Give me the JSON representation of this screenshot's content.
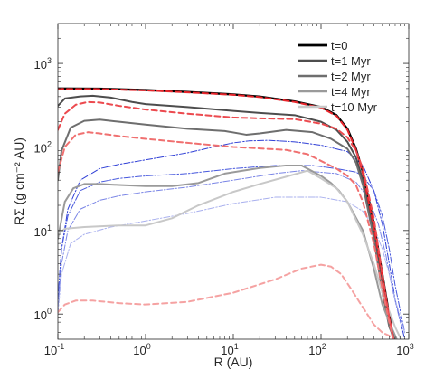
{
  "chart_data": {
    "type": "line",
    "title": "",
    "xlabel": "R (AU)",
    "ylabel": "RΣ (g cm⁻² AU)",
    "x_scale": "log",
    "y_scale": "log",
    "xlim": [
      0.1,
      1000
    ],
    "ylim": [
      0.5,
      3000
    ],
    "grid": false,
    "legend_position": "top-right",
    "x_ticks": [
      {
        "value": 0.1,
        "base": "10",
        "exp": "-1"
      },
      {
        "value": 1,
        "base": "10",
        "exp": "0"
      },
      {
        "value": 10,
        "base": "10",
        "exp": "1"
      },
      {
        "value": 100,
        "base": "10",
        "exp": "2"
      },
      {
        "value": 1000,
        "base": "10",
        "exp": "3"
      }
    ],
    "y_ticks": [
      {
        "value": 1,
        "base": "10",
        "exp": "0"
      },
      {
        "value": 10,
        "base": "10",
        "exp": "1"
      },
      {
        "value": 100,
        "base": "10",
        "exp": "2"
      },
      {
        "value": 1000,
        "base": "10",
        "exp": "3"
      }
    ],
    "series": [
      {
        "name": "t=0",
        "group": "total",
        "color": "#000000",
        "width": 2.4,
        "dash": "",
        "points": [
          [
            0.1,
            500
          ],
          [
            0.3,
            498
          ],
          [
            1,
            480
          ],
          [
            3,
            455
          ],
          [
            10,
            425
          ],
          [
            20,
            400
          ],
          [
            50,
            350
          ],
          [
            100,
            300
          ],
          [
            150,
            240
          ],
          [
            200,
            165
          ],
          [
            250,
            95
          ],
          [
            300,
            50
          ],
          [
            400,
            12
          ],
          [
            500,
            3
          ],
          [
            600,
            0.95
          ],
          [
            700,
            0.4
          ]
        ]
      },
      {
        "name": "t=1 Myr",
        "group": "total",
        "color": "#4d4d4d",
        "width": 2.0,
        "dash": "",
        "points": [
          [
            0.1,
            310
          ],
          [
            0.12,
            380
          ],
          [
            0.18,
            402
          ],
          [
            0.25,
            410
          ],
          [
            0.4,
            390
          ],
          [
            0.7,
            345
          ],
          [
            1,
            325
          ],
          [
            3,
            300
          ],
          [
            10,
            270
          ],
          [
            20,
            255
          ],
          [
            50,
            240
          ],
          [
            100,
            200
          ],
          [
            150,
            160
          ],
          [
            200,
            115
          ],
          [
            250,
            75
          ],
          [
            300,
            40
          ],
          [
            400,
            10
          ],
          [
            500,
            2.5
          ],
          [
            600,
            0.8
          ],
          [
            700,
            0.4
          ]
        ]
      },
      {
        "name": "t=2 Myr",
        "group": "total",
        "color": "#6e6e6e",
        "width": 2.0,
        "dash": "",
        "points": [
          [
            0.1,
            40
          ],
          [
            0.11,
            90
          ],
          [
            0.14,
            170
          ],
          [
            0.2,
            205
          ],
          [
            0.3,
            212
          ],
          [
            0.5,
            200
          ],
          [
            1,
            185
          ],
          [
            3,
            165
          ],
          [
            8,
            155
          ],
          [
            14,
            140
          ],
          [
            20,
            145
          ],
          [
            40,
            160
          ],
          [
            80,
            150
          ],
          [
            130,
            125
          ],
          [
            200,
            95
          ],
          [
            250,
            65
          ],
          [
            300,
            35
          ],
          [
            400,
            8
          ],
          [
            500,
            1.8
          ],
          [
            600,
            0.7
          ],
          [
            750,
            0.4
          ]
        ]
      },
      {
        "name": "t=4 Myr",
        "group": "total",
        "color": "#9a9a9a",
        "width": 2.0,
        "dash": "",
        "points": [
          [
            0.1,
            8
          ],
          [
            0.12,
            22
          ],
          [
            0.15,
            32
          ],
          [
            0.2,
            36
          ],
          [
            0.3,
            36
          ],
          [
            0.5,
            35
          ],
          [
            1,
            34
          ],
          [
            2,
            34
          ],
          [
            4,
            37
          ],
          [
            8,
            48
          ],
          [
            20,
            56
          ],
          [
            40,
            60
          ],
          [
            60,
            60
          ],
          [
            100,
            45
          ],
          [
            130,
            37
          ],
          [
            160,
            30
          ],
          [
            200,
            22
          ],
          [
            300,
            10
          ],
          [
            400,
            3.5
          ],
          [
            500,
            1.3
          ],
          [
            600,
            0.8
          ],
          [
            800,
            0.4
          ]
        ]
      },
      {
        "name": "t=10 Myr",
        "group": "total",
        "color": "#c8c8c8",
        "width": 2.0,
        "dash": "",
        "points": [
          [
            0.1,
            9
          ],
          [
            0.12,
            10.5
          ],
          [
            0.2,
            11
          ],
          [
            0.5,
            11.5
          ],
          [
            1,
            11.5
          ],
          [
            2,
            14
          ],
          [
            4,
            20
          ],
          [
            10,
            29
          ],
          [
            20,
            36
          ],
          [
            40,
            44
          ],
          [
            70,
            52
          ],
          [
            100,
            42
          ],
          [
            150,
            32
          ],
          [
            200,
            22
          ],
          [
            300,
            9
          ],
          [
            400,
            4
          ],
          [
            500,
            1.8
          ],
          [
            700,
            0.7
          ],
          [
            900,
            0.4
          ]
        ]
      },
      {
        "group": "gas-dashed",
        "color": "#e8252b",
        "width": 2.0,
        "dash": "6,4",
        "points": [
          [
            0.1,
            495
          ],
          [
            0.3,
            493
          ],
          [
            1,
            475
          ],
          [
            3,
            450
          ],
          [
            10,
            420
          ],
          [
            20,
            395
          ],
          [
            50,
            345
          ],
          [
            100,
            295
          ],
          [
            150,
            235
          ],
          [
            200,
            160
          ],
          [
            250,
            92
          ],
          [
            300,
            48
          ],
          [
            400,
            11
          ],
          [
            500,
            2.8
          ],
          [
            600,
            0.9
          ],
          [
            700,
            0.4
          ]
        ]
      },
      {
        "group": "gas-dashed",
        "color": "#ec4a4f",
        "width": 2.0,
        "dash": "6,4",
        "points": [
          [
            0.1,
            160
          ],
          [
            0.12,
            250
          ],
          [
            0.16,
            320
          ],
          [
            0.22,
            345
          ],
          [
            0.3,
            340
          ],
          [
            0.5,
            310
          ],
          [
            1,
            280
          ],
          [
            3,
            250
          ],
          [
            10,
            225
          ],
          [
            20,
            220
          ],
          [
            50,
            215
          ],
          [
            100,
            190
          ],
          [
            150,
            165
          ],
          [
            200,
            130
          ],
          [
            250,
            90
          ],
          [
            300,
            55
          ],
          [
            400,
            14
          ],
          [
            500,
            3
          ],
          [
            600,
            0.9
          ],
          [
            700,
            0.4
          ]
        ]
      },
      {
        "group": "gas-dashed",
        "color": "#f07070",
        "width": 2.0,
        "dash": "6,4",
        "points": [
          [
            0.1,
            50
          ],
          [
            0.12,
            100
          ],
          [
            0.16,
            140
          ],
          [
            0.22,
            150
          ],
          [
            0.3,
            145
          ],
          [
            0.5,
            135
          ],
          [
            1,
            125
          ],
          [
            3,
            112
          ],
          [
            10,
            100
          ],
          [
            20,
            96
          ],
          [
            40,
            92
          ],
          [
            70,
            82
          ],
          [
            100,
            68
          ],
          [
            150,
            55
          ],
          [
            200,
            45
          ],
          [
            250,
            35
          ],
          [
            300,
            22
          ],
          [
            400,
            7
          ],
          [
            500,
            2
          ],
          [
            600,
            0.8
          ],
          [
            700,
            0.4
          ]
        ]
      },
      {
        "group": "gas-dashed",
        "color": "#f5a2a2",
        "width": 2.0,
        "dash": "6,4",
        "points": [
          [
            0.1,
            1.05
          ],
          [
            0.12,
            1.3
          ],
          [
            0.16,
            1.45
          ],
          [
            0.25,
            1.45
          ],
          [
            0.5,
            1.35
          ],
          [
            1,
            1.3
          ],
          [
            3,
            1.4
          ],
          [
            10,
            1.8
          ],
          [
            30,
            2.6
          ],
          [
            60,
            3.5
          ],
          [
            100,
            3.9
          ],
          [
            130,
            3.7
          ],
          [
            170,
            3
          ],
          [
            220,
            2
          ],
          [
            300,
            1.2
          ],
          [
            400,
            0.75
          ],
          [
            500,
            0.6
          ],
          [
            600,
            0.55
          ],
          [
            700,
            0.45
          ]
        ]
      },
      {
        "group": "dust-dashdot",
        "color": "#2f3fd6",
        "width": 1.0,
        "dash": "7,2,1.5,2",
        "points": [
          [
            0.1,
            1.5
          ],
          [
            0.11,
            6
          ],
          [
            0.13,
            18
          ],
          [
            0.18,
            40
          ],
          [
            0.3,
            55
          ],
          [
            0.5,
            62
          ],
          [
            1,
            70
          ],
          [
            3,
            85
          ],
          [
            6,
            100
          ],
          [
            10,
            112
          ],
          [
            15,
            118
          ],
          [
            25,
            120
          ],
          [
            50,
            115
          ],
          [
            100,
            105
          ],
          [
            200,
            88
          ],
          [
            300,
            60
          ],
          [
            400,
            30
          ],
          [
            500,
            12
          ],
          [
            600,
            4
          ],
          [
            700,
            1.5
          ],
          [
            900,
            0.5
          ]
        ]
      },
      {
        "group": "dust-dashdot",
        "color": "#4657dd",
        "width": 1.0,
        "dash": "7,2,1.5,2",
        "points": [
          [
            0.1,
            1.5
          ],
          [
            0.11,
            6
          ],
          [
            0.13,
            15
          ],
          [
            0.18,
            30
          ],
          [
            0.3,
            38
          ],
          [
            0.5,
            42
          ],
          [
            1,
            45
          ],
          [
            3,
            48
          ],
          [
            10,
            55
          ],
          [
            30,
            60
          ],
          [
            80,
            60
          ],
          [
            150,
            55
          ],
          [
            250,
            50
          ],
          [
            300,
            45
          ],
          [
            400,
            30
          ],
          [
            500,
            15
          ],
          [
            600,
            6
          ],
          [
            700,
            2.2
          ],
          [
            900,
            0.6
          ]
        ]
      },
      {
        "group": "dust-dashdot",
        "color": "#7a85e6",
        "width": 1.0,
        "dash": "7,2,1.5,2",
        "points": [
          [
            0.1,
            1.2
          ],
          [
            0.11,
            4
          ],
          [
            0.13,
            10
          ],
          [
            0.18,
            18
          ],
          [
            0.3,
            23
          ],
          [
            0.5,
            26
          ],
          [
            1,
            29
          ],
          [
            3,
            33
          ],
          [
            10,
            40
          ],
          [
            30,
            48
          ],
          [
            60,
            52
          ],
          [
            150,
            48
          ],
          [
            250,
            38
          ],
          [
            350,
            24
          ],
          [
            450,
            12
          ],
          [
            550,
            5
          ],
          [
            650,
            2
          ],
          [
            800,
            0.8
          ]
        ]
      },
      {
        "group": "dust-dashdot",
        "color": "#a9b0ee",
        "width": 1.0,
        "dash": "7,2,1.5,2",
        "points": [
          [
            0.1,
            1
          ],
          [
            0.11,
            3
          ],
          [
            0.14,
            7
          ],
          [
            0.2,
            9
          ],
          [
            0.4,
            11
          ],
          [
            1,
            13
          ],
          [
            3,
            16
          ],
          [
            10,
            21
          ],
          [
            30,
            25
          ],
          [
            100,
            25
          ],
          [
            200,
            22
          ],
          [
            300,
            17
          ],
          [
            400,
            11
          ],
          [
            500,
            6
          ],
          [
            600,
            3
          ],
          [
            700,
            1.5
          ],
          [
            900,
            0.6
          ]
        ]
      }
    ]
  }
}
